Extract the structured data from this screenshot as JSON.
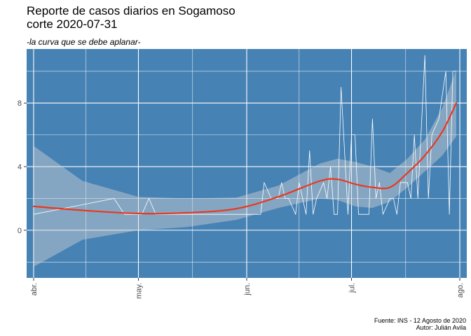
{
  "title_line1": "Reporte de casos diarios en Sogamoso",
  "title_line2": "corte 2020-07-31",
  "subtitle": "-la curva que se debe aplanar-",
  "caption_line1": "Fuente: INS - 12 Agosto de 2020",
  "caption_line2": "Autor: Julián Avila",
  "colors": {
    "panel_bg": "#4682b4",
    "grid": "#ffffff",
    "daily_line": "#ffffff",
    "trend_line": "#e8391e",
    "confidence_band": "#d3d3d3"
  },
  "chart_data": {
    "type": "line",
    "title": "Reporte de casos diarios en Sogamoso corte 2020-07-31",
    "subtitle": "-la curva que se debe aplanar-",
    "xlabel": "",
    "ylabel": "",
    "xlim": [
      "2020-03-30",
      "2020-08-03"
    ],
    "ylim": [
      -3,
      11.4
    ],
    "x_ticks": [
      {
        "date": "2020-04-01",
        "label": "abr."
      },
      {
        "date": "2020-05-01",
        "label": "may."
      },
      {
        "date": "2020-06-01",
        "label": "jun."
      },
      {
        "date": "2020-07-01",
        "label": "jul."
      },
      {
        "date": "2020-08-01",
        "label": "ago."
      }
    ],
    "y_ticks": [
      0,
      4,
      8
    ],
    "grid": true,
    "series": [
      {
        "type": "line",
        "points": [
          [
            "2020-04-01",
            1
          ],
          [
            "2020-04-24",
            2
          ],
          [
            "2020-04-27",
            1
          ],
          [
            "2020-05-02",
            1
          ],
          [
            "2020-05-04",
            2
          ],
          [
            "2020-05-06",
            1
          ],
          [
            "2020-06-05",
            1
          ],
          [
            "2020-06-06",
            3
          ],
          [
            "2020-06-08",
            2
          ],
          [
            "2020-06-10",
            2
          ],
          [
            "2020-06-11",
            3
          ],
          [
            "2020-06-12",
            2
          ],
          [
            "2020-06-13",
            2
          ],
          [
            "2020-06-15",
            1
          ],
          [
            "2020-06-16",
            3
          ],
          [
            "2020-06-18",
            1
          ],
          [
            "2020-06-19",
            5
          ],
          [
            "2020-06-20",
            1
          ],
          [
            "2020-06-21",
            2
          ],
          [
            "2020-06-23",
            3
          ],
          [
            "2020-06-24",
            2
          ],
          [
            "2020-06-25",
            4
          ],
          [
            "2020-06-26",
            1
          ],
          [
            "2020-06-27",
            1
          ],
          [
            "2020-06-28",
            9
          ],
          [
            "2020-06-30",
            1
          ],
          [
            "2020-07-01",
            6
          ],
          [
            "2020-07-02",
            6
          ],
          [
            "2020-07-03",
            1
          ],
          [
            "2020-07-06",
            1
          ],
          [
            "2020-07-07",
            7
          ],
          [
            "2020-07-08",
            2
          ],
          [
            "2020-07-09",
            3
          ],
          [
            "2020-07-10",
            1
          ],
          [
            "2020-07-12",
            2
          ],
          [
            "2020-07-13",
            2
          ],
          [
            "2020-07-14",
            1
          ],
          [
            "2020-07-15",
            3
          ],
          [
            "2020-07-17",
            3
          ],
          [
            "2020-07-18",
            2
          ],
          [
            "2020-07-19",
            6
          ],
          [
            "2020-07-20",
            2
          ],
          [
            "2020-07-22",
            11
          ],
          [
            "2020-07-23",
            2
          ],
          [
            "2020-07-24",
            6
          ],
          [
            "2020-07-26",
            7
          ],
          [
            "2020-07-28",
            10
          ],
          [
            "2020-07-29",
            1
          ],
          [
            "2020-07-30",
            10
          ],
          [
            "2020-07-31",
            10
          ]
        ]
      },
      {
        "type": "smooth",
        "points": [
          [
            "2020-04-01",
            1.5
          ],
          [
            "2020-04-15",
            1.25
          ],
          [
            "2020-05-01",
            1.05
          ],
          [
            "2020-05-15",
            1.1
          ],
          [
            "2020-05-29",
            1.35
          ],
          [
            "2020-06-10",
            2.1
          ],
          [
            "2020-06-22",
            3.1
          ],
          [
            "2020-06-27",
            3.2
          ],
          [
            "2020-07-02",
            2.9
          ],
          [
            "2020-07-07",
            2.7
          ],
          [
            "2020-07-12",
            2.7
          ],
          [
            "2020-07-17",
            3.6
          ],
          [
            "2020-07-22",
            4.7
          ],
          [
            "2020-07-27",
            6.2
          ],
          [
            "2020-07-31",
            8.0
          ]
        ],
        "band_upper": [
          5.3,
          3.1,
          2.1,
          2.0,
          2.05,
          2.8,
          4.2,
          4.5,
          4.3,
          4.0,
          3.6,
          4.5,
          5.7,
          7.7,
          10.1
        ],
        "band_lower": [
          -2.3,
          -0.6,
          0.0,
          0.2,
          0.65,
          1.4,
          2.0,
          1.9,
          1.5,
          1.4,
          1.8,
          2.7,
          3.7,
          4.7,
          5.9
        ]
      }
    ]
  }
}
